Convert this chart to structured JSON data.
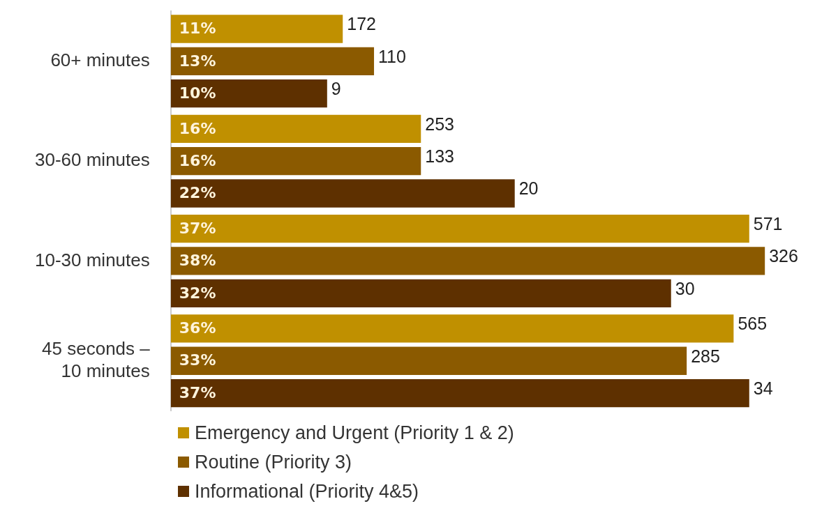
{
  "chart_data": {
    "type": "bar",
    "orientation": "horizontal",
    "legend": "bottom",
    "categories": [
      "60+ minutes",
      "30-60 minutes",
      "10-30 minutes",
      "45 seconds – 10 minutes"
    ],
    "series": [
      {
        "name": "Emergency and Urgent (Priority 1 & 2)",
        "color": "#c09000",
        "values": [
          11,
          16,
          37,
          36
        ],
        "value_labels": [
          "11%",
          "16%",
          "37%",
          "36%"
        ]
      },
      {
        "name": "Routine (Priority 3)",
        "color": "#8b5a00",
        "values": [
          13,
          16,
          38,
          33
        ],
        "value_labels": [
          "13%",
          "16%",
          "38%",
          "33%"
        ]
      },
      {
        "name": "Informational (Priority 4&5)",
        "color": "#5e3000",
        "values": [
          10,
          22,
          32,
          37
        ],
        "value_labels": [
          "10%",
          "22%",
          "32%",
          "37%"
        ]
      }
    ],
    "annotations": [
      "172",
      "110",
      "9",
      "253",
      "133",
      "20",
      "571",
      "326",
      "30",
      "565",
      "285",
      "34"
    ]
  }
}
